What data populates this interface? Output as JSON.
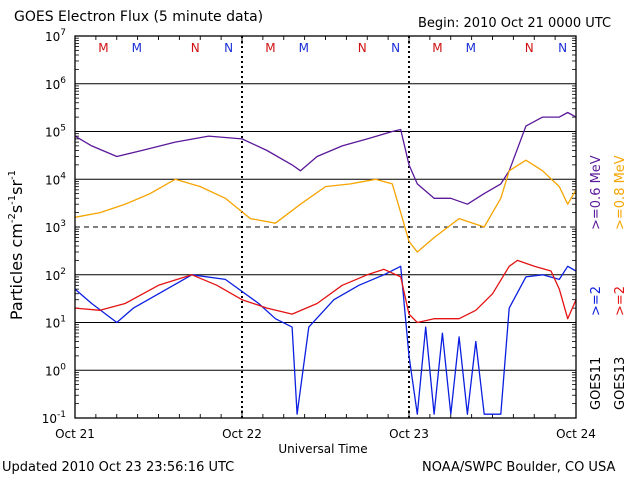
{
  "header": {
    "title": "GOES Electron Flux (5 minute data)",
    "begin": "Begin: 2010 Oct 21 0000 UTC"
  },
  "footer": {
    "updated": "Updated 2010 Oct 23 23:56:16 UTC",
    "credit": "NOAA/SWPC Boulder, CO USA"
  },
  "colors": {
    "goes11_06": "#5a189a",
    "goes13_08": "#f5a400",
    "goes11_2": "#0b1fe0",
    "goes13_2": "#e31313",
    "marker_m": "#d01010",
    "marker_n": "#1a2fd6"
  },
  "chart_data": {
    "type": "line",
    "xlabel": "Universal Time",
    "ylabel_parts": [
      "Particles cm",
      "-2",
      "s",
      "-1",
      "sr",
      "-1"
    ],
    "y_scale": "log",
    "ylim": [
      0.1,
      10000000
    ],
    "y_ticks": [
      {
        "base": "10",
        "exp": "7"
      },
      {
        "base": "10",
        "exp": "6"
      },
      {
        "base": "10",
        "exp": "5"
      },
      {
        "base": "10",
        "exp": "4"
      },
      {
        "base": "10",
        "exp": "3"
      },
      {
        "base": "10",
        "exp": "2"
      },
      {
        "base": "10",
        "exp": "1"
      },
      {
        "base": "10",
        "exp": "0"
      },
      {
        "base": "10",
        "exp": "-1"
      }
    ],
    "x_ticks": [
      "Oct 21",
      "Oct 22",
      "Oct 23",
      "Oct 24"
    ],
    "xlim_days": [
      0,
      3
    ],
    "grid": true,
    "markers": [
      {
        "label": "M",
        "day": 0.17,
        "color_key": "marker_m"
      },
      {
        "label": "M",
        "day": 0.37,
        "color_key": "marker_n"
      },
      {
        "label": "N",
        "day": 0.72,
        "color_key": "marker_m"
      },
      {
        "label": "N",
        "day": 0.92,
        "color_key": "marker_n"
      },
      {
        "label": "M",
        "day": 1.17,
        "color_key": "marker_m"
      },
      {
        "label": "M",
        "day": 1.37,
        "color_key": "marker_n"
      },
      {
        "label": "N",
        "day": 1.72,
        "color_key": "marker_m"
      },
      {
        "label": "N",
        "day": 1.92,
        "color_key": "marker_n"
      },
      {
        "label": "M",
        "day": 2.17,
        "color_key": "marker_m"
      },
      {
        "label": "M",
        "day": 2.37,
        "color_key": "marker_n"
      },
      {
        "label": "N",
        "day": 2.72,
        "color_key": "marker_m"
      },
      {
        "label": "N",
        "day": 2.92,
        "color_key": "marker_n"
      }
    ],
    "legend": [
      {
        "text": ">=0.6 MeV",
        "color_key": "goes11_06"
      },
      {
        "text": ">=0.8 MeV",
        "color_key": "goes13_08"
      },
      {
        "text": ">=2",
        "color_key": "goes11_2"
      },
      {
        "text": ">=2",
        "color_key": "goes13_2"
      },
      {
        "text": "GOES11",
        "color_key": ""
      },
      {
        "text": "GOES13",
        "color_key": ""
      }
    ],
    "series": [
      {
        "name": ">=0.6 MeV",
        "color_key": "goes11_06",
        "x": [
          0,
          0.1,
          0.25,
          0.4,
          0.6,
          0.8,
          1.0,
          1.15,
          1.3,
          1.35,
          1.45,
          1.6,
          1.75,
          1.9,
          1.95,
          2.0,
          2.05,
          2.15,
          2.25,
          2.35,
          2.45,
          2.55,
          2.6,
          2.7,
          2.8,
          2.9,
          2.95,
          3.0
        ],
        "y": [
          80000,
          50000,
          30000,
          40000,
          60000,
          80000,
          70000,
          40000,
          20000,
          15000,
          30000,
          50000,
          70000,
          100000,
          110000,
          20000,
          8000,
          4000,
          4000,
          3000,
          5000,
          8000,
          15000,
          130000,
          200000,
          200000,
          250000,
          200000
        ]
      },
      {
        "name": ">=0.8 MeV",
        "color_key": "goes13_08",
        "x": [
          0,
          0.15,
          0.3,
          0.45,
          0.6,
          0.75,
          0.9,
          1.05,
          1.2,
          1.35,
          1.5,
          1.65,
          1.8,
          1.9,
          1.95,
          2.0,
          2.05,
          2.15,
          2.3,
          2.45,
          2.55,
          2.6,
          2.7,
          2.8,
          2.9,
          2.95,
          3.0
        ],
        "y": [
          1600,
          2000,
          3000,
          5000,
          10000,
          7000,
          4000,
          1500,
          1200,
          3000,
          7000,
          8000,
          10000,
          8000,
          2000,
          500,
          300,
          600,
          1500,
          1000,
          4000,
          15000,
          25000,
          15000,
          7000,
          3000,
          6000
        ]
      },
      {
        "name": ">=2",
        "color_key": "goes11_2",
        "x": [
          0,
          0.1,
          0.25,
          0.35,
          0.5,
          0.7,
          0.9,
          1.1,
          1.2,
          1.3,
          1.33,
          1.4,
          1.55,
          1.7,
          1.85,
          1.95,
          2.0,
          2.05,
          2.1,
          2.15,
          2.2,
          2.25,
          2.3,
          2.35,
          2.4,
          2.45,
          2.55,
          2.6,
          2.7,
          2.8,
          2.9,
          2.95,
          3.0
        ],
        "y": [
          50,
          25,
          10,
          20,
          40,
          100,
          80,
          25,
          12,
          8,
          0.12,
          8,
          30,
          60,
          100,
          150,
          2,
          0.12,
          8,
          0.12,
          6,
          0.12,
          5,
          0.12,
          4,
          0.12,
          0.12,
          20,
          90,
          100,
          80,
          150,
          120
        ]
      },
      {
        "name": ">=2",
        "color_key": "goes13_2",
        "x": [
          0,
          0.15,
          0.3,
          0.5,
          0.7,
          0.85,
          1.0,
          1.15,
          1.3,
          1.45,
          1.6,
          1.75,
          1.85,
          1.95,
          2.0,
          2.05,
          2.15,
          2.3,
          2.4,
          2.5,
          2.6,
          2.65,
          2.75,
          2.85,
          2.9,
          2.95,
          3.0
        ],
        "y": [
          20,
          18,
          25,
          60,
          100,
          60,
          30,
          20,
          15,
          25,
          60,
          100,
          130,
          90,
          15,
          10,
          12,
          12,
          18,
          40,
          150,
          200,
          150,
          120,
          50,
          12,
          30
        ]
      }
    ]
  }
}
